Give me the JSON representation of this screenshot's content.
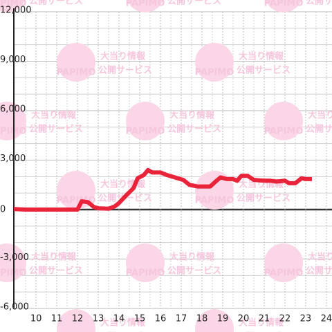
{
  "chart_data": {
    "type": "line",
    "watermark": {
      "logo": "PAPIMO",
      "line1": "大当り情報",
      "line2": "公開サービス"
    },
    "x": [
      8.93,
      9.5,
      10,
      11,
      12,
      12.2,
      12.5,
      12.8,
      13,
      13.5,
      13.8,
      14,
      14.3,
      14.7,
      14.9,
      15.2,
      15.4,
      15.6,
      16,
      16.3,
      16.7,
      17.1,
      17.4,
      17.8,
      18.2,
      18.4,
      18.7,
      18.9,
      19.2,
      19.5,
      19.7,
      19.9,
      20.2,
      20.5,
      21,
      21.3,
      21.6,
      22,
      22.2,
      22.5,
      22.8,
      23,
      23.3
    ],
    "series": [
      {
        "color": "#e8233a",
        "values": [
          30,
          0,
          0,
          0,
          0,
          500,
          450,
          150,
          80,
          50,
          200,
          400,
          800,
          1300,
          1900,
          2100,
          2400,
          2250,
          2250,
          2100,
          1950,
          1800,
          1500,
          1400,
          1400,
          1400,
          1750,
          1950,
          1850,
          1850,
          1750,
          2050,
          2050,
          1800,
          1750,
          1750,
          1700,
          1750,
          1600,
          1600,
          1900,
          1850,
          1850
        ]
      }
    ],
    "xlim": [
      8.93,
      24.27
    ],
    "ylim": [
      -6000,
      12000
    ],
    "xticks": [
      10,
      11,
      12,
      13,
      14,
      15,
      16,
      17,
      18,
      19,
      20,
      21,
      22,
      23,
      24
    ],
    "yticks": [
      {
        "value": -6000,
        "label": "-6,000"
      },
      {
        "value": -3000,
        "label": "-3,000"
      },
      0,
      {
        "value": 3000,
        "label": "3,000"
      },
      {
        "value": 6000,
        "label": "6,000"
      },
      {
        "value": 9000,
        "label": "9,000"
      },
      {
        "value": 12000,
        "label": "12,000"
      }
    ],
    "xminor": [
      9.5,
      10.5,
      11.5,
      12.5,
      13.5,
      14.5,
      15.5,
      16.5,
      17.5,
      18.5,
      19.5,
      20.5,
      21.5,
      22.5,
      23.5
    ],
    "yminor": [
      -5000,
      -4000,
      -2000,
      -1000,
      1000,
      2000,
      4000,
      5000,
      7000,
      8000,
      10000,
      11000
    ],
    "grid": true
  }
}
